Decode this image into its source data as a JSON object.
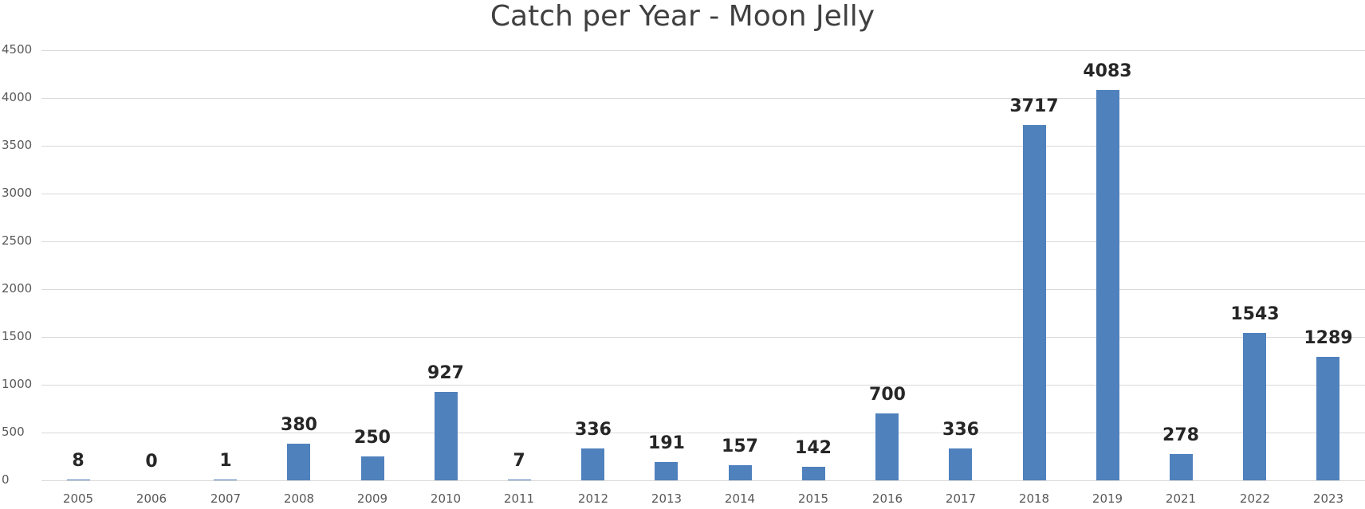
{
  "chart_data": {
    "type": "bar",
    "title": "Catch per Year - Moon Jelly",
    "xlabel": "",
    "ylabel": "",
    "categories": [
      "2005",
      "2006",
      "2007",
      "2008",
      "2009",
      "2010",
      "2011",
      "2012",
      "2013",
      "2014",
      "2015",
      "2016",
      "2017",
      "2018",
      "2019",
      "2021",
      "2022",
      "2023"
    ],
    "values": [
      8,
      0,
      1,
      380,
      250,
      927,
      7,
      336,
      191,
      157,
      142,
      700,
      336,
      3717,
      4083,
      278,
      1543,
      1289
    ],
    "data_labels": [
      "8",
      "0",
      "1",
      "380",
      "250",
      "927",
      "7",
      "336",
      "191",
      "157",
      "142",
      "700",
      "336",
      "3717",
      "4083",
      "278",
      "1543",
      "1289"
    ],
    "ylim": [
      0,
      4500
    ],
    "yticks": [
      0,
      500,
      1000,
      1500,
      2000,
      2500,
      3000,
      3500,
      4000,
      4500
    ],
    "ytick_labels": [
      "0",
      "500",
      "1000",
      "1500",
      "2000",
      "2500",
      "3000",
      "3500",
      "4000",
      "4500"
    ],
    "grid": true,
    "legend": null,
    "bar_color": "#4F81BD",
    "gridline_color": "#D9D9D9"
  }
}
